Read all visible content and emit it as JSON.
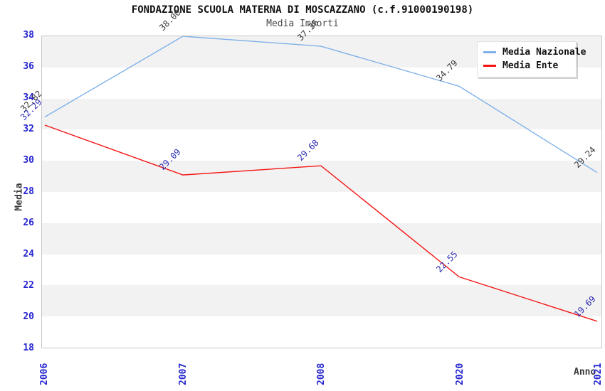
{
  "header": {
    "title": "FONDAZIONE SCUOLA MATERNA DI MOSCAZZANO (c.f.91000190198)",
    "subtitle": "Media Importi"
  },
  "chart_data": {
    "type": "line",
    "categories": [
      "2006",
      "2007",
      "2008",
      "2020",
      "2021"
    ],
    "series": [
      {
        "name": "Media Nazionale",
        "color": "#7fb1e8",
        "values": [
          32.82,
          38.0,
          37.36,
          34.79,
          29.24
        ],
        "point_labels": [
          "32.82",
          "38.00",
          "37.36",
          "34.79",
          "29.24"
        ],
        "label_color": "#3a3a3a"
      },
      {
        "name": "Media Ente",
        "color": "#f41414",
        "values": [
          32.29,
          29.09,
          29.68,
          22.55,
          19.69
        ],
        "point_labels": [
          "32.29",
          "29.09",
          "29.68",
          "22.55",
          "19.69"
        ],
        "label_color": "#2a2ab4"
      }
    ],
    "xlabel": "Anno",
    "ylabel": "Media",
    "ylim": [
      18,
      38
    ],
    "ytick_step": 2,
    "ytick_labels": [
      "38",
      "36",
      "34",
      "32",
      "30",
      "28",
      "26",
      "24",
      "22",
      "20",
      "18"
    ],
    "axis_tick_color": "#2424cf",
    "band_colors": [
      "#f2f2f2",
      "#ffffff"
    ],
    "grid": "alternating-bands",
    "legend_position": "top-right"
  }
}
